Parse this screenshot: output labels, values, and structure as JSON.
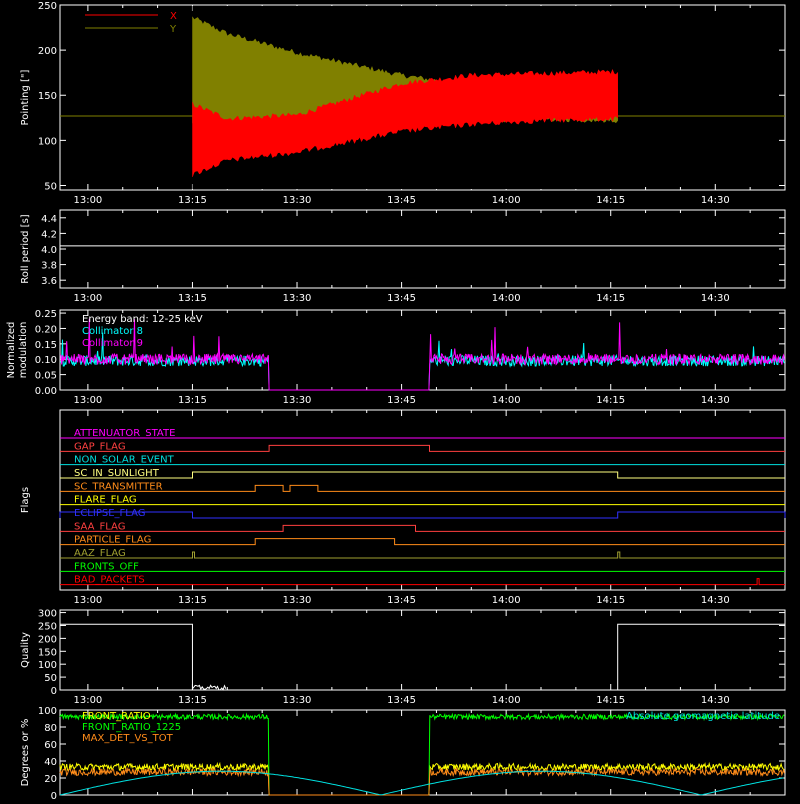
{
  "time_ticks": [
    "13:00",
    "13:15",
    "13:30",
    "13:45",
    "14:00",
    "14:15",
    "14:30"
  ],
  "chart_data": [
    {
      "type": "line",
      "ylabel": "Pointing [\"]",
      "ylim": [
        45,
        250
      ],
      "yticks": [
        50,
        100,
        150,
        200,
        250
      ],
      "legend_position": "top-left",
      "series": [
        {
          "name": "X",
          "color": "#ff0000",
          "envelope": {
            "t": [
              "13:15",
              "13:20",
              "13:30",
              "13:45",
              "13:55",
              "14:05",
              "14:16"
            ],
            "upper": [
              140,
              124,
              128,
              163,
              172,
              174,
              176
            ],
            "lower": [
              62,
              78,
              87,
              110,
              118,
              122,
              124
            ]
          }
        },
        {
          "name": "Y",
          "color": "#808000",
          "envelope": {
            "t": [
              "13:15",
              "13:20",
              "13:30",
              "13:45",
              "13:55",
              "14:05",
              "14:16"
            ],
            "upper": [
              236,
              218,
              197,
              172,
              161,
              159,
              157
            ],
            "lower": [
              120,
              100,
              103,
              118,
              122,
              124,
              122
            ]
          }
        }
      ],
      "baseline": 127,
      "data_window": [
        "13:15",
        "14:16"
      ]
    },
    {
      "type": "line",
      "ylabel": "Roll period [s]",
      "ylim": [
        3.5,
        4.5
      ],
      "yticks": [
        3.6,
        3.8,
        4.0,
        4.2,
        4.4
      ],
      "series": [
        {
          "color": "#ffffff",
          "value": 4.04
        }
      ]
    },
    {
      "type": "line",
      "ylabel": "Normalized modulation",
      "ylim": [
        0,
        0.26
      ],
      "yticks": [
        0.0,
        0.05,
        0.1,
        0.15,
        0.2,
        0.25
      ],
      "annotation": "Energy band: 12-25 keV",
      "series": [
        {
          "name": "Collimator 8",
          "color": "#00ffff",
          "mean": 0.095
        },
        {
          "name": "Collimator 9",
          "color": "#ff00ff",
          "mean": 0.1
        }
      ],
      "gap": [
        "13:26",
        "13:49"
      ]
    },
    {
      "type": "line",
      "ylabel": "Flags",
      "flags": [
        {
          "name": "ATTENUATOR_STATE",
          "color": "#ff00ff",
          "steps": []
        },
        {
          "name": "GAP_FLAG",
          "color": "#ff4040",
          "steps": [
            [
              "13:26",
              "13:49"
            ]
          ]
        },
        {
          "name": "NON_SOLAR_EVENT",
          "color": "#00e0e0",
          "steps": []
        },
        {
          "name": "SC_IN_SUNLIGHT",
          "color": "#ffff80",
          "steps": [
            [
              "13:15",
              "14:16"
            ]
          ]
        },
        {
          "name": "SC_TRANSMITTER",
          "color": "#ff8c1a",
          "steps": [
            [
              "13:24",
              "13:28"
            ],
            [
              "13:29",
              "13:33"
            ]
          ]
        },
        {
          "name": "FLARE_FLAG",
          "color": "#ffff00",
          "steps": []
        },
        {
          "name": "ECLIPSE_FLAG",
          "color": "#3030ff",
          "steps": [
            [
              "00:00",
              "13:15"
            ],
            [
              "14:16",
              "23:59"
            ]
          ]
        },
        {
          "name": "SAA_FLAG",
          "color": "#ff4040",
          "steps": [
            [
              "13:28",
              "13:47"
            ]
          ]
        },
        {
          "name": "PARTICLE_FLAG",
          "color": "#ff8c1a",
          "steps": [
            [
              "13:24",
              "13:44"
            ]
          ]
        },
        {
          "name": "AAZ_FLAG",
          "color": "#a0a030",
          "steps": [
            [
              "13:15",
              "13:15.3"
            ],
            [
              "14:16",
              "14:16.3"
            ]
          ]
        },
        {
          "name": "FRONTS_OFF",
          "color": "#00ff00",
          "steps": []
        },
        {
          "name": "BAD_PACKETS",
          "color": "#ff0000",
          "steps": [
            [
              "14:36",
              "14:36.2"
            ]
          ]
        }
      ]
    },
    {
      "type": "line",
      "ylabel": "Quality",
      "ylim": [
        0,
        310
      ],
      "yticks": [
        0,
        50,
        100,
        150,
        200,
        250,
        300
      ],
      "series": [
        {
          "color": "#ffffff",
          "steps": [
            [
              "00:00",
              "13:15",
              255
            ],
            [
              "14:16",
              "23:59",
              255
            ]
          ]
        }
      ]
    },
    {
      "type": "line",
      "ylabel": "Degrees or %",
      "ylim": [
        0,
        100
      ],
      "yticks": [
        0,
        20,
        40,
        60,
        80,
        100
      ],
      "legend_position": "top-left",
      "annotation_right": "Absolute geomagnetic latitude",
      "series": [
        {
          "name": "FRONT_RATIO",
          "color": "#ffff00",
          "mean": 33
        },
        {
          "name": "FRONT_RATIO_1225",
          "color": "#00ff00",
          "mean": 92
        },
        {
          "name": "MAX_DET_VS_TOT",
          "color": "#ff8c1a",
          "mean": 27
        },
        {
          "name": "",
          "color": "#00e0e0",
          "note": "latitude curve"
        }
      ],
      "gap": [
        "13:26",
        "13:49"
      ]
    }
  ]
}
